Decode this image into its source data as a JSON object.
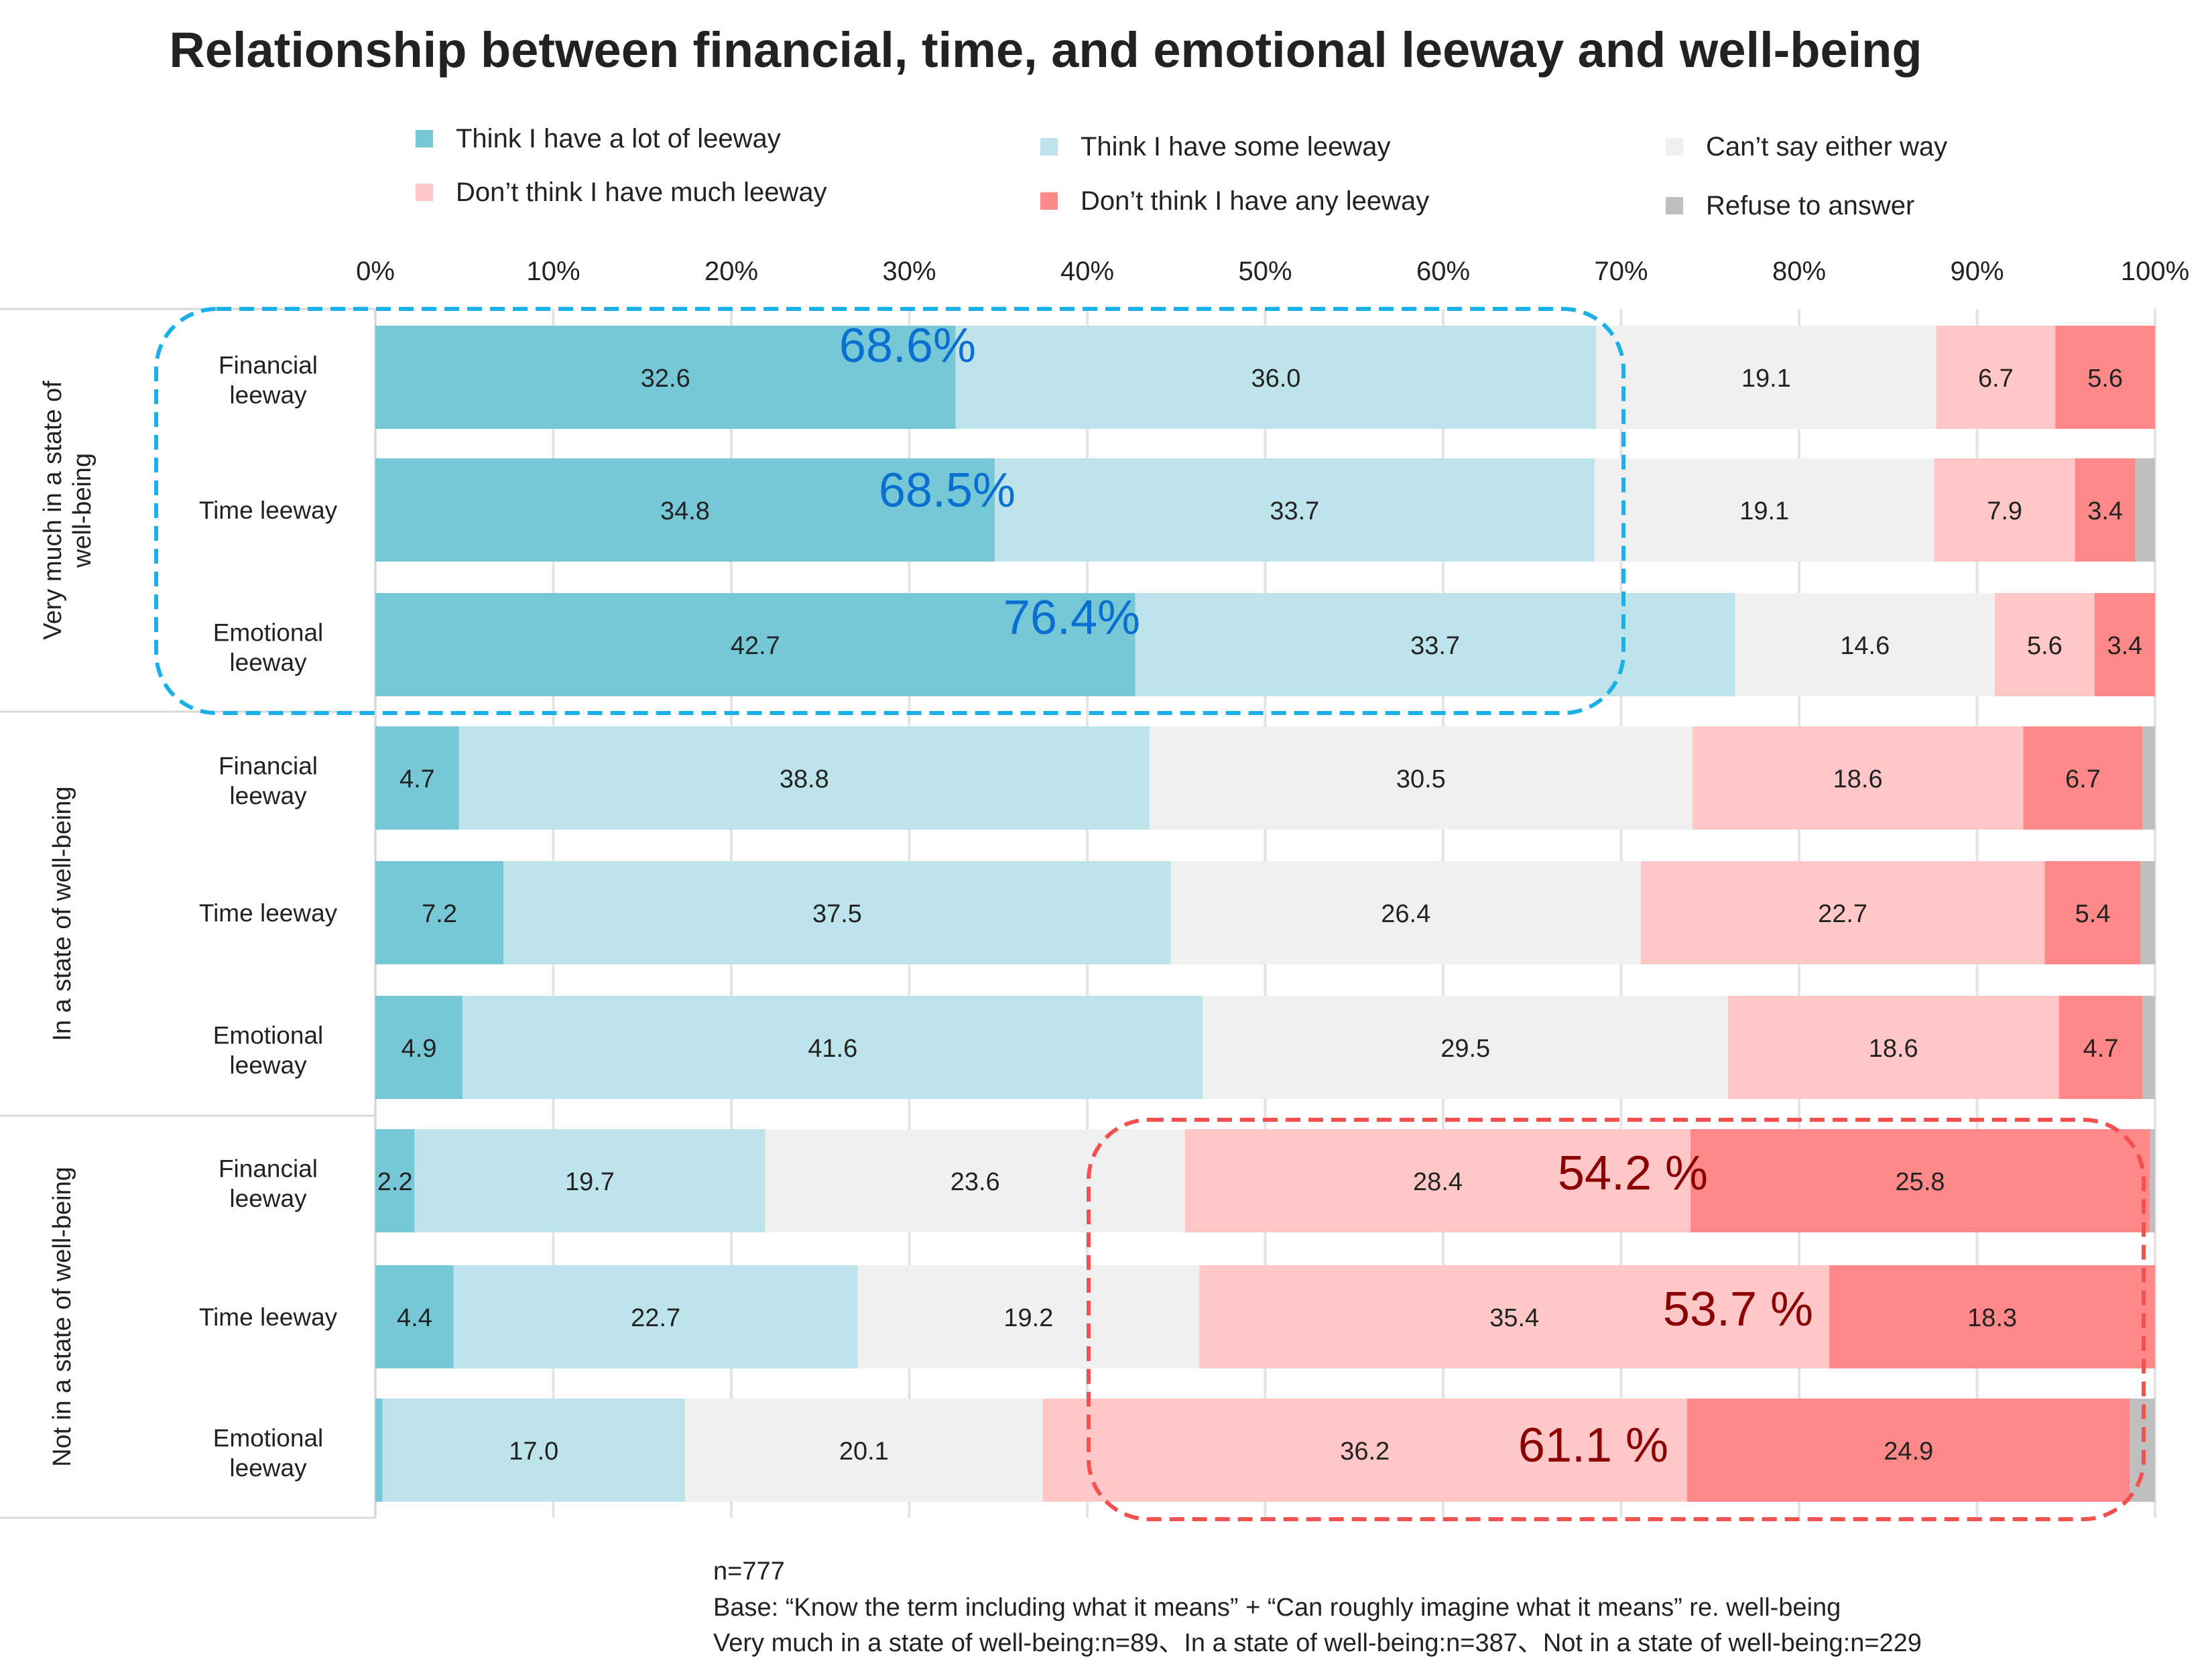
{
  "chart_data": {
    "type": "bar",
    "orientation": "horizontal",
    "stacked": true,
    "title": "Relationship between financial, time, and emotional leeway and well-being",
    "xlim": [
      0,
      100
    ],
    "x_ticks": [
      "0%",
      "10%",
      "20%",
      "30%",
      "40%",
      "50%",
      "60%",
      "70%",
      "80%",
      "90%",
      "100%"
    ],
    "x_axis_position": "top",
    "grid": true,
    "legend_position": "top",
    "series": [
      {
        "name": "Think I have a lot of leeway",
        "color": "#76c8d6"
      },
      {
        "name": "Think I have some leeway",
        "color": "#bde3eb"
      },
      {
        "name": "Can’t say either way",
        "color": "#f0f0f0"
      },
      {
        "name": "Don’t think I have much leeway",
        "color": "#ffc7c7"
      },
      {
        "name": "Don’t think I have any leeway",
        "color": "#ff8888"
      },
      {
        "name": "Refuse to answer",
        "color": "#bfbfbf"
      }
    ],
    "groups": [
      {
        "label": "Very much in a state of well-being",
        "rows": [
          {
            "label": "Financial leeway",
            "values": [
              32.6,
              36.0,
              19.1,
              6.7,
              5.6,
              0
            ]
          },
          {
            "label": "Time leeway",
            "values": [
              34.8,
              33.7,
              19.1,
              7.9,
              3.4,
              1.1
            ]
          },
          {
            "label": "Emotional leeway",
            "values": [
              42.7,
              33.7,
              14.6,
              5.6,
              3.4,
              0
            ]
          }
        ]
      },
      {
        "label": "In a state of well-being",
        "rows": [
          {
            "label": "Financial leeway",
            "values": [
              4.7,
              38.8,
              30.5,
              18.6,
              6.7,
              0.7
            ]
          },
          {
            "label": "Time leeway",
            "values": [
              7.2,
              37.5,
              26.4,
              22.7,
              5.4,
              0.8
            ]
          },
          {
            "label": "Emotional leeway",
            "values": [
              4.9,
              41.6,
              29.5,
              18.6,
              4.7,
              0.7
            ]
          }
        ]
      },
      {
        "label": "Not in a state of well-being",
        "rows": [
          {
            "label": "Financial leeway",
            "values": [
              2.2,
              19.7,
              23.6,
              28.4,
              25.8,
              0.3
            ]
          },
          {
            "label": "Time leeway",
            "values": [
              4.4,
              22.7,
              19.2,
              35.4,
              18.3,
              0
            ]
          },
          {
            "label": "Emotional leeway",
            "values": [
              0.4,
              17.0,
              20.1,
              36.2,
              24.9,
              1.4
            ]
          }
        ]
      }
    ],
    "annotations": {
      "positive": {
        "color": "#0a6fd0",
        "labels": [
          "68.6%",
          "68.5%",
          "76.4%"
        ]
      },
      "negative": {
        "color": "#8b0000",
        "labels": [
          "54.2 %",
          "53.7 %",
          "61.1 %"
        ]
      }
    }
  },
  "footnotes": [
    "n=777",
    "Base: “Know the term including what it means” + “Can roughly imagine what it means” re. well-being",
    "Very much in a state of well-being:n=89、In a state of well-being:n=387、Not in a state of well-being:n=229"
  ]
}
